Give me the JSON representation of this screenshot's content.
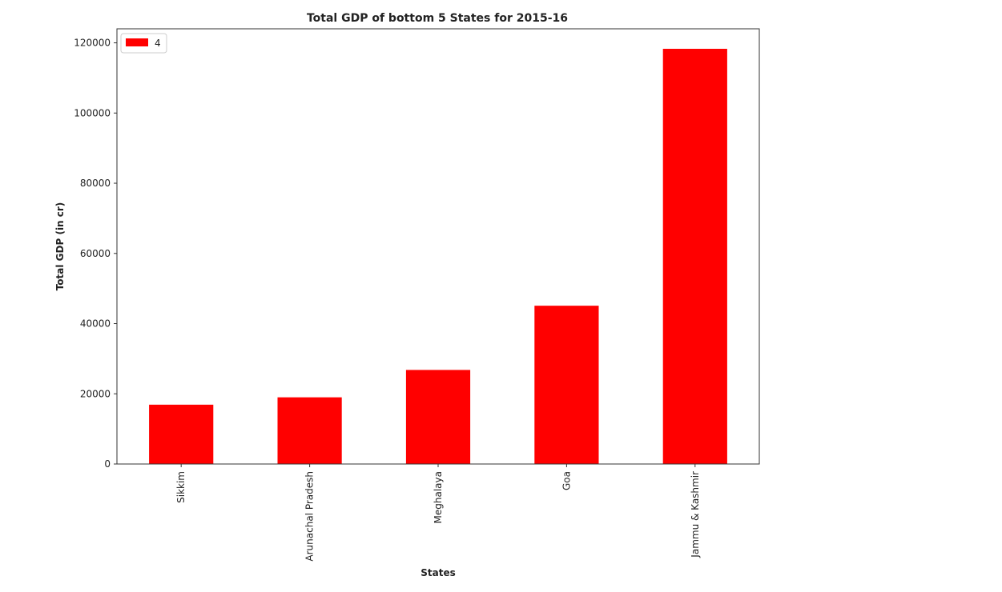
{
  "chart_data": {
    "type": "bar",
    "title": "Total GDP of bottom 5 States for 2015-16",
    "xlabel": "States",
    "ylabel": "Total GDP (in cr)",
    "categories": [
      "Sikkim",
      "Arunachal Pradesh",
      "Meghalaya",
      "Goa",
      "Jammu & Kashmir"
    ],
    "series": [
      {
        "name": "4",
        "values": [
          16900,
          19000,
          26800,
          45100,
          118300
        ]
      }
    ],
    "ylim": [
      0,
      124000
    ],
    "yticks": [
      0,
      20000,
      40000,
      60000,
      80000,
      100000,
      120000
    ],
    "ytick_labels": [
      "0",
      "20000",
      "40000",
      "60000",
      "80000",
      "100000",
      "120000"
    ],
    "grid": false,
    "legend_position": "top-left",
    "bar_color": "#ff0000"
  }
}
